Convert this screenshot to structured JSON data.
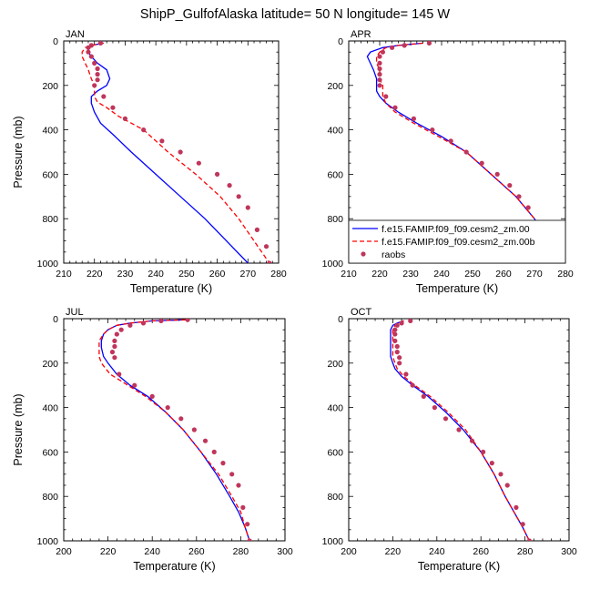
{
  "figure_title": "ShipP_GulfofAlaska  latitude= 50 N longitude= 145 W",
  "chart_data": [
    {
      "type": "line",
      "title": "JAN",
      "xlabel": "Temperature (K)",
      "ylabel": "Pressure (mb)",
      "xlim": [
        210,
        280
      ],
      "ylim": [
        1000,
        0
      ],
      "xticks": [
        210,
        220,
        230,
        240,
        250,
        260,
        270,
        280
      ],
      "yticks": [
        0,
        200,
        400,
        600,
        800,
        1000
      ],
      "series": [
        {
          "name": "f.e15.FAMIP.f09_f09.cesm2_zm.00",
          "color": "#0000ff",
          "style": "solid",
          "x": [
            223,
            219,
            218,
            218,
            219,
            221,
            224,
            225,
            224,
            221,
            219,
            219,
            220,
            222,
            226,
            232,
            240,
            248,
            256,
            263,
            270
          ],
          "y": [
            10,
            20,
            30,
            50,
            70,
            100,
            130,
            170,
            200,
            225,
            250,
            280,
            320,
            370,
            420,
            500,
            600,
            700,
            800,
            900,
            1000
          ]
        },
        {
          "name": "f.e15.FAMIP.f09_f09.cesm2_zm.00b",
          "color": "#ff0000",
          "style": "dashed",
          "x": [
            223,
            219,
            217,
            216,
            216,
            217,
            218,
            219,
            220,
            220,
            221,
            224,
            228,
            236,
            244,
            253,
            261,
            267,
            272,
            277
          ],
          "y": [
            10,
            20,
            30,
            50,
            70,
            100,
            130,
            170,
            200,
            250,
            275,
            300,
            340,
            400,
            500,
            600,
            700,
            800,
            900,
            1000
          ]
        },
        {
          "name": "raobs",
          "color": "#c0355b",
          "style": "points",
          "x": [
            222,
            219,
            218,
            218,
            219,
            220,
            221,
            221,
            221,
            220,
            223,
            226,
            230,
            236,
            242,
            248,
            254,
            260,
            264,
            267,
            270,
            273,
            276,
            277
          ],
          "y": [
            10,
            20,
            30,
            50,
            70,
            100,
            125,
            150,
            175,
            200,
            250,
            300,
            350,
            400,
            450,
            500,
            550,
            600,
            650,
            700,
            750,
            850,
            925,
            1000
          ]
        }
      ]
    },
    {
      "type": "line",
      "title": "APR",
      "xlabel": "Temperature (K)",
      "ylabel": "",
      "xlim": [
        210,
        280
      ],
      "ylim": [
        1000,
        0
      ],
      "xticks": [
        210,
        220,
        230,
        240,
        250,
        260,
        270,
        280
      ],
      "yticks": [
        0,
        200,
        400,
        600,
        800,
        1000
      ],
      "series": [
        {
          "name": "f.e15.FAMIP.f09_f09.cesm2_zm.00",
          "color": "#0000ff",
          "style": "solid",
          "x": [
            234,
            226,
            221,
            217,
            216,
            217,
            218,
            219,
            219,
            219,
            220,
            222,
            226,
            232,
            240,
            248,
            256,
            264,
            270,
            274,
            278
          ],
          "y": [
            10,
            20,
            30,
            50,
            70,
            100,
            130,
            170,
            200,
            225,
            250,
            280,
            320,
            370,
            430,
            500,
            600,
            700,
            800,
            900,
            1000
          ]
        },
        {
          "name": "f.e15.FAMIP.f09_f09.cesm2_zm.00b",
          "color": "#ff0000",
          "style": "dashed",
          "x": [
            234,
            226,
            222,
            220,
            219,
            219,
            220,
            220,
            221,
            221,
            221,
            222,
            225,
            231,
            239,
            248,
            256,
            264,
            270,
            274,
            278
          ],
          "y": [
            10,
            20,
            30,
            50,
            70,
            100,
            130,
            170,
            200,
            225,
            250,
            280,
            320,
            370,
            430,
            500,
            600,
            700,
            800,
            900,
            1000
          ]
        },
        {
          "name": "raobs",
          "color": "#c0355b",
          "style": "points",
          "x": [
            236,
            228,
            224,
            221,
            220,
            220,
            220,
            220,
            220,
            220,
            222,
            225,
            231,
            237,
            243,
            248,
            253,
            258,
            262,
            265,
            268,
            271,
            275,
            278
          ],
          "y": [
            10,
            20,
            30,
            50,
            70,
            100,
            125,
            150,
            175,
            200,
            250,
            300,
            350,
            400,
            450,
            500,
            550,
            600,
            650,
            700,
            750,
            850,
            925,
            1000
          ]
        }
      ]
    },
    {
      "type": "line",
      "title": "JUL",
      "xlabel": "Temperature (K)",
      "ylabel": "Pressure (mb)",
      "xlim": [
        200,
        300
      ],
      "ylim": [
        1000,
        0
      ],
      "xticks": [
        200,
        220,
        240,
        260,
        280,
        300
      ],
      "yticks": [
        0,
        200,
        400,
        600,
        800,
        1000
      ],
      "series": [
        {
          "name": "f.e15.FAMIP.f09_f09.cesm2_zm.00",
          "color": "#0000ff",
          "style": "solid",
          "x": [
            256,
            240,
            230,
            224,
            220,
            218,
            217,
            217,
            218,
            220,
            224,
            230,
            238,
            246,
            254,
            262,
            269,
            275,
            279,
            282,
            284
          ],
          "y": [
            5,
            10,
            20,
            30,
            50,
            70,
            100,
            130,
            170,
            200,
            250,
            300,
            350,
            420,
            500,
            600,
            700,
            800,
            870,
            940,
            1000
          ]
        },
        {
          "name": "f.e15.FAMIP.f09_f09.cesm2_zm.00b",
          "color": "#ff0000",
          "style": "dashed",
          "x": [
            255,
            240,
            230,
            224,
            220,
            218,
            216,
            216,
            216,
            217,
            221,
            229,
            237,
            246,
            254,
            262,
            270,
            276,
            280,
            282,
            284
          ],
          "y": [
            5,
            10,
            20,
            30,
            50,
            70,
            100,
            130,
            170,
            200,
            250,
            300,
            350,
            420,
            500,
            600,
            700,
            800,
            870,
            940,
            1000
          ]
        },
        {
          "name": "raobs",
          "color": "#c0355b",
          "style": "points",
          "x": [
            256,
            244,
            236,
            230,
            226,
            224,
            223,
            223,
            222,
            223,
            225,
            232,
            240,
            247,
            253,
            259,
            264,
            268,
            272,
            276,
            279,
            281,
            283,
            284
          ],
          "y": [
            5,
            10,
            20,
            30,
            50,
            70,
            100,
            125,
            150,
            175,
            250,
            300,
            350,
            400,
            450,
            500,
            550,
            600,
            650,
            700,
            750,
            850,
            925,
            1000
          ]
        }
      ]
    },
    {
      "type": "line",
      "title": "OCT",
      "xlabel": "Temperature (K)",
      "ylabel": "",
      "xlim": [
        200,
        300
      ],
      "ylim": [
        1000,
        0
      ],
      "xticks": [
        200,
        220,
        240,
        260,
        280,
        300
      ],
      "yticks": [
        0,
        200,
        400,
        600,
        800,
        1000
      ],
      "series": [
        {
          "name": "f.e15.FAMIP.f09_f09.cesm2_zm.00",
          "color": "#0000ff",
          "style": "solid",
          "x": [
            225,
            222,
            220,
            219,
            219,
            219,
            219,
            219,
            220,
            221,
            224,
            229,
            236,
            244,
            252,
            260,
            266,
            271,
            275,
            279,
            282
          ],
          "y": [
            10,
            20,
            30,
            50,
            70,
            100,
            130,
            170,
            200,
            225,
            260,
            300,
            350,
            420,
            500,
            600,
            700,
            800,
            870,
            940,
            1000
          ]
        },
        {
          "name": "f.e15.FAMIP.f09_f09.cesm2_zm.00b",
          "color": "#ff0000",
          "style": "dashed",
          "x": [
            225,
            222,
            221,
            220,
            220,
            220,
            220,
            220,
            221,
            222,
            225,
            230,
            237,
            245,
            253,
            260,
            266,
            271,
            275,
            279,
            282
          ],
          "y": [
            10,
            20,
            30,
            50,
            70,
            100,
            130,
            170,
            200,
            225,
            260,
            300,
            350,
            420,
            500,
            600,
            700,
            800,
            870,
            940,
            1000
          ]
        },
        {
          "name": "raobs",
          "color": "#c0355b",
          "style": "points",
          "x": [
            228,
            224,
            222,
            221,
            221,
            221,
            222,
            222,
            223,
            223,
            226,
            229,
            234,
            239,
            244,
            250,
            256,
            261,
            265,
            269,
            272,
            276,
            279,
            282
          ],
          "y": [
            10,
            20,
            30,
            50,
            70,
            100,
            125,
            150,
            175,
            200,
            250,
            300,
            350,
            400,
            450,
            500,
            550,
            600,
            650,
            700,
            750,
            850,
            925,
            1000
          ]
        }
      ]
    }
  ],
  "legend": {
    "entries": [
      {
        "label": "f.e15.FAMIP.f09_f09.cesm2_zm.00",
        "color": "#0000ff",
        "style": "solid"
      },
      {
        "label": "f.e15.FAMIP.f09_f09.cesm2_zm.00b",
        "color": "#ff0000",
        "style": "dashed"
      },
      {
        "label": "raobs",
        "color": "#c0355b",
        "style": "points"
      }
    ]
  }
}
